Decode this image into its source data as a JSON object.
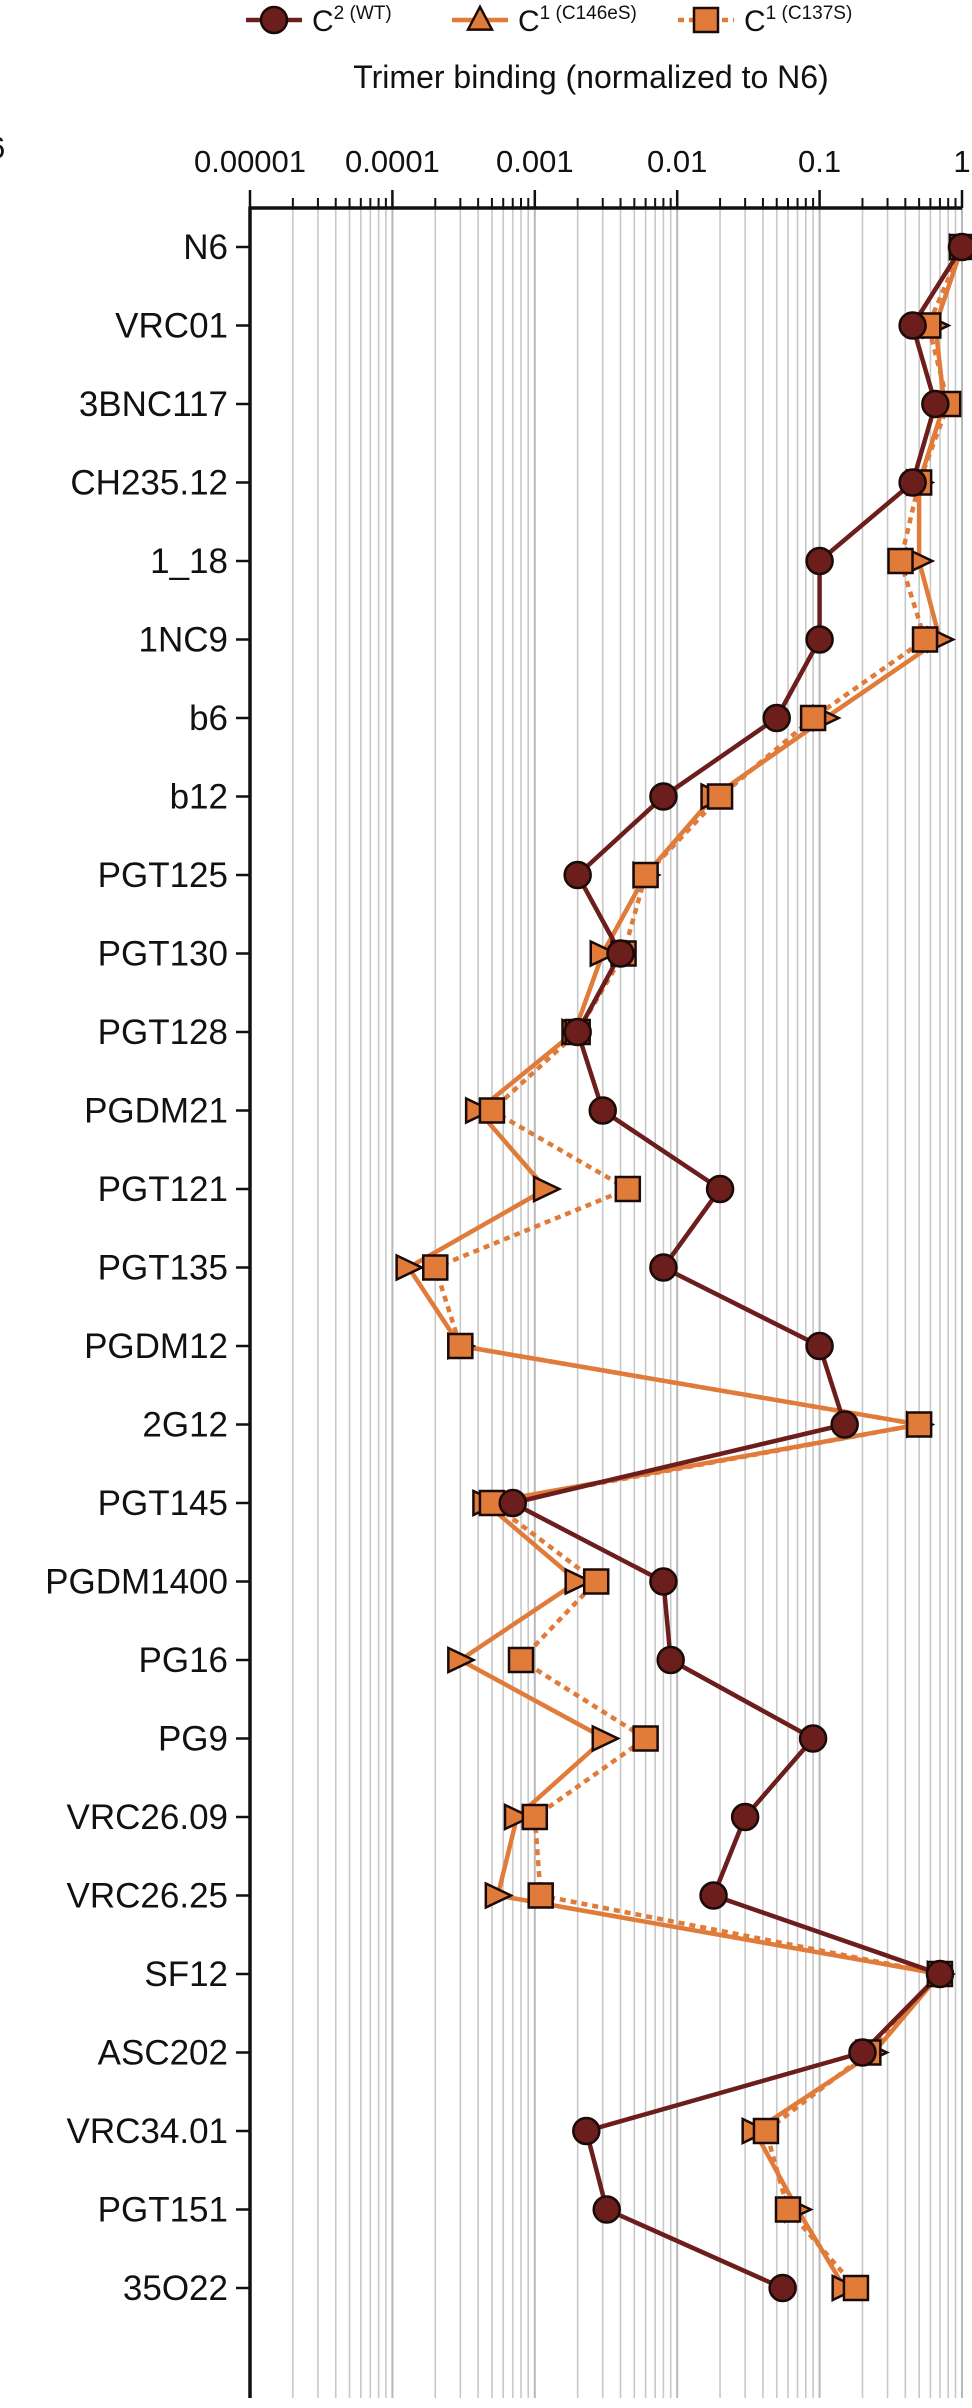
{
  "chart_data": {
    "type": "line",
    "orientation": "horizontal",
    "title": "",
    "xlabel": "Trimer binding (normalized to N6)",
    "ylabel": "",
    "xscale": "log",
    "xlim": [
      1e-05,
      1
    ],
    "x_ticks": [
      "0.00001",
      "0.0001",
      "0.001",
      "0.01",
      "0.1",
      "1"
    ],
    "grid": true,
    "legend_position": "top",
    "stray_label": "6",
    "categories": [
      "N6",
      "VRC01",
      "3BNC117",
      "CH235.12",
      "1_18",
      "1NC9",
      "b6",
      "b12",
      "PGT125",
      "PGT130",
      "PGT128",
      "PGDM21",
      "PGT121",
      "PGT135",
      "PGDM12",
      "2G12",
      "PGT145",
      "PGDM1400",
      "PG16",
      "PG9",
      "VRC26.09",
      "VRC26.25",
      "SF12",
      "ASC202",
      "VRC34.01",
      "PGT151",
      "35O22"
    ],
    "series": [
      {
        "name": "C",
        "name_sup": "2 (WT)",
        "color": "#6b1e1b",
        "marker": "circle",
        "line_style": "solid",
        "values": [
          1,
          0.45,
          0.65,
          0.45,
          0.1,
          0.1,
          0.05,
          0.008,
          0.002,
          0.004,
          0.002,
          0.003,
          0.02,
          0.008,
          0.1,
          0.15,
          0.0007,
          0.008,
          0.009,
          0.09,
          0.03,
          0.018,
          0.7,
          0.2,
          0.0023,
          0.0032,
          0.055
        ]
      },
      {
        "name": "C",
        "name_sup": "1 (C146eS)",
        "color": "#e07b39",
        "marker": "triangle",
        "line_style": "solid",
        "values": [
          1,
          0.65,
          0.75,
          0.5,
          0.5,
          0.7,
          0.11,
          0.018,
          0.006,
          0.003,
          0.0019,
          0.0004,
          0.0012,
          0.00013,
          0.0003,
          0.5,
          0.00045,
          0.002,
          0.0003,
          0.0031,
          0.00075,
          0.00055,
          0.7,
          0.24,
          0.035,
          0.07,
          0.15
        ]
      },
      {
        "name": "C",
        "name_sup": "1 (C137S)",
        "color": "#e07b39",
        "marker": "square",
        "line_style": "dotted",
        "values": [
          1,
          0.58,
          0.8,
          0.5,
          0.37,
          0.55,
          0.09,
          0.02,
          0.006,
          0.0042,
          0.002,
          0.0005,
          0.0045,
          0.0002,
          0.0003,
          0.5,
          0.0005,
          0.0027,
          0.0008,
          0.006,
          0.001,
          0.0011,
          0.7,
          0.22,
          0.042,
          0.06,
          0.18
        ]
      }
    ]
  }
}
